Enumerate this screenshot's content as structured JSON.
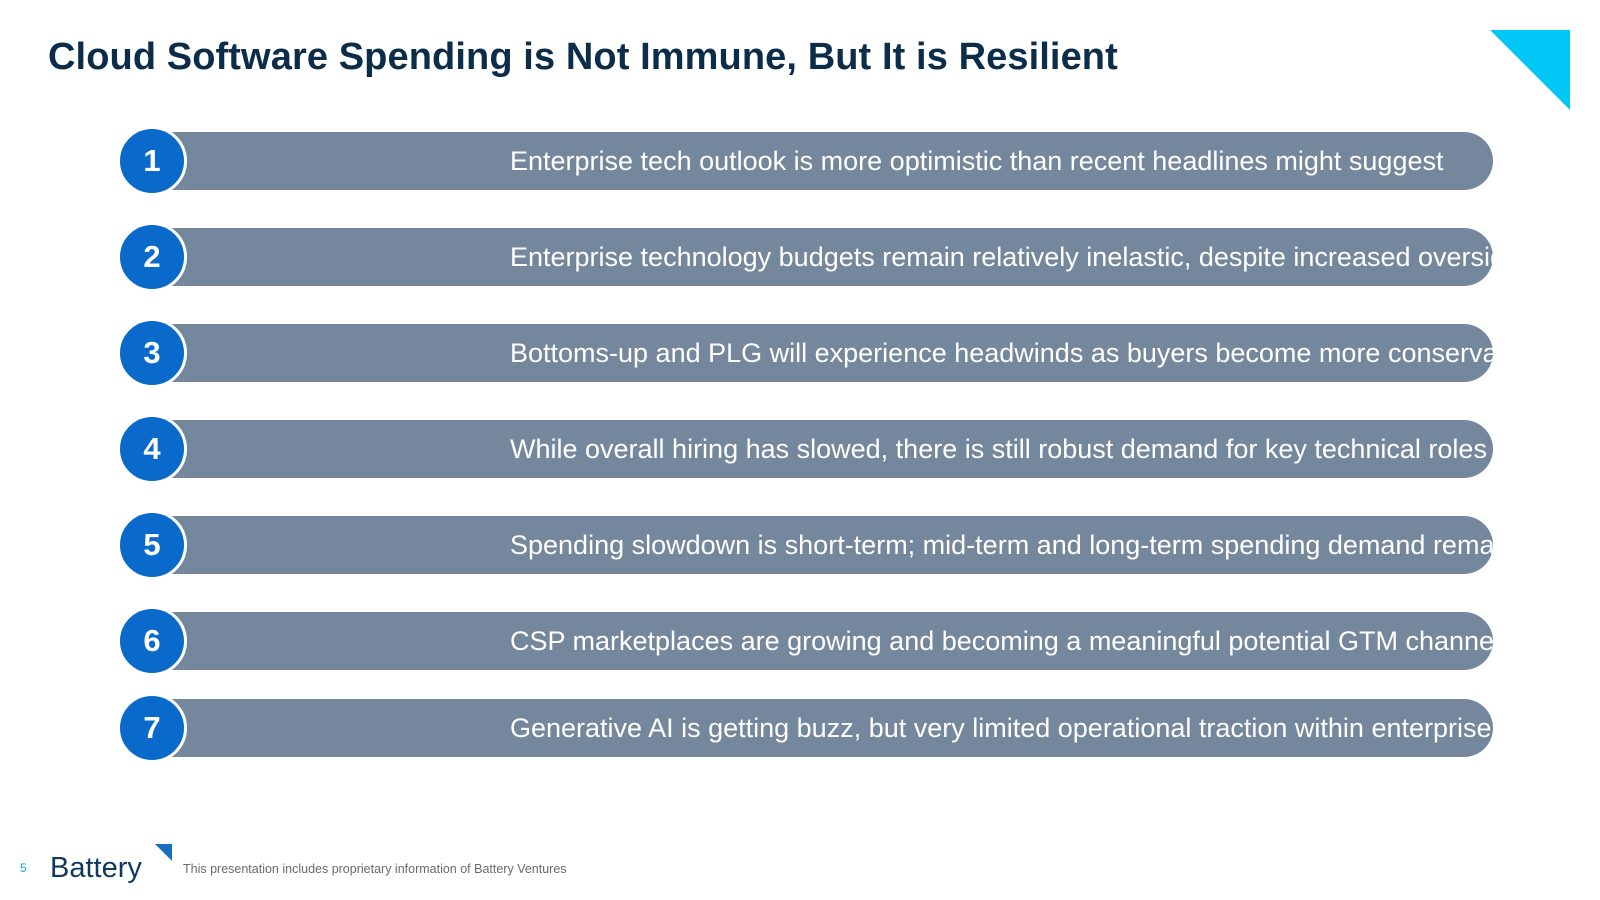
{
  "slide": {
    "title": "Cloud Software Spending is Not Immune, But It is Resilient",
    "accent_color": "#00c7f5",
    "title_color": "#0b2d4a"
  },
  "points": [
    {
      "number": "1",
      "text": "Enterprise tech outlook is more optimistic than recent headlines might suggest"
    },
    {
      "number": "2",
      "text": "Enterprise technology budgets remain relatively inelastic, despite increased oversight"
    },
    {
      "number": "3",
      "text": "Bottoms-up and PLG will experience headwinds as buyers become more conservative"
    },
    {
      "number": "4",
      "text": "While overall hiring has slowed, there is still robust demand for key technical roles"
    },
    {
      "number": "5",
      "text": "Spending slowdown is short-term; mid-term and long-term spending demand remains intact"
    },
    {
      "number": "6",
      "text": "CSP marketplaces are growing and becoming a meaningful potential GTM channel"
    },
    {
      "number": "7",
      "text": "Generative AI is getting buzz, but very limited operational traction within enterprises to date"
    }
  ],
  "colors": {
    "number_circle": "#0a6acb",
    "bar": "#74879c"
  },
  "footer": {
    "page_number": "5",
    "logo_text": "Battery",
    "disclaimer": "This presentation includes proprietary information of Battery Ventures"
  }
}
